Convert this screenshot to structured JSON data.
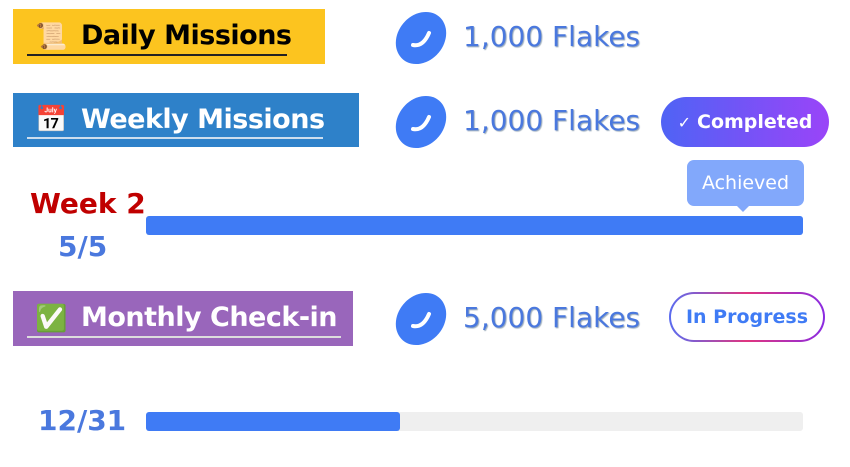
{
  "daily": {
    "title": "Daily Missions",
    "icon": "scroll-icon",
    "bg": "#fcc41f",
    "reward": "1,000 Flakes"
  },
  "weekly": {
    "title": "Weekly Missions",
    "icon": "calendar-icon",
    "bg": "#2e81c9",
    "reward": "1,000 Flakes",
    "status": "Completed",
    "tooltip": "Achieved",
    "week": "Week 2",
    "progress_text": "5/5",
    "progress": 1.0
  },
  "monthly": {
    "title": "Monthly Check-in",
    "icon": "check-mark-icon",
    "bg": "#9966bb",
    "reward": "5,000 Flakes",
    "status": "In Progress",
    "progress_text": "12/31",
    "progress": 0.387
  },
  "colors": {
    "accent": "#3f7bf5",
    "week_label": "#c00000"
  }
}
